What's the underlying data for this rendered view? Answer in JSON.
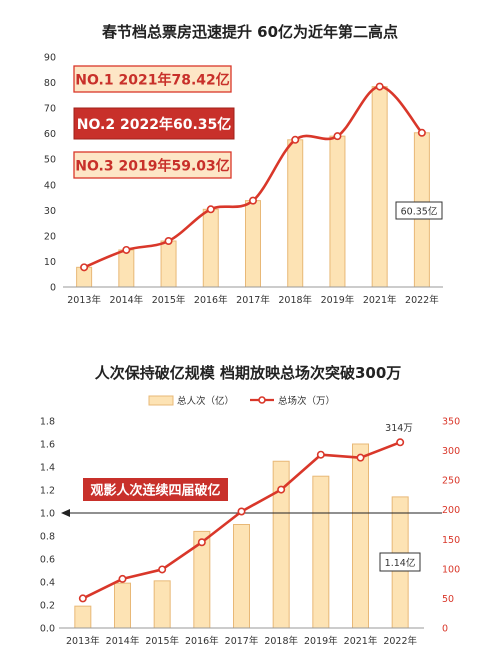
{
  "colors": {
    "bar_fill": "#FDE3B4",
    "bar_stroke": "#E8B877",
    "line": "#D9372A",
    "axis_text": "#333333",
    "grid": "#E6E6E6",
    "callout_light_fill": "#FDE6C6",
    "callout_dark_fill": "#C8302A"
  },
  "chart_data": [
    {
      "type": "bar+line",
      "title": "春节档总票房迅速提升 60亿为近年第二高点",
      "categories": [
        "2013年",
        "2014年",
        "2015年",
        "2016年",
        "2017年",
        "2018年",
        "2019年",
        "2021年",
        "2022年"
      ],
      "series": [
        {
          "kind": "bar",
          "values": [
            7.7,
            14.5,
            18.0,
            30.4,
            33.8,
            57.6,
            59.03,
            78.42,
            60.35
          ]
        },
        {
          "kind": "line",
          "values": [
            7.7,
            14.5,
            18.0,
            30.4,
            33.8,
            57.6,
            59.03,
            78.42,
            60.35
          ]
        }
      ],
      "ylim": [
        0,
        90
      ],
      "yticks": [
        "0",
        "10",
        "20",
        "30",
        "40",
        "50",
        "60",
        "70",
        "80",
        "90"
      ],
      "grid": false,
      "callouts": [
        "NO.1 2021年78.42亿",
        "NO.2 2022年60.35亿",
        "NO.3 2019年59.03亿"
      ],
      "end_label": "60.35亿"
    },
    {
      "type": "bar+line",
      "title": "人次保持破亿规模 档期放映总场次突破300万",
      "categories": [
        "2013年",
        "2014年",
        "2015年",
        "2016年",
        "2017年",
        "2018年",
        "2019年",
        "2021年",
        "2022年"
      ],
      "series": [
        {
          "name": "总人次（亿）",
          "kind": "bar",
          "axis": "left",
          "values": [
            0.19,
            0.39,
            0.41,
            0.84,
            0.9,
            1.45,
            1.32,
            1.6,
            1.14
          ]
        },
        {
          "name": "总场次（万）",
          "kind": "line",
          "axis": "right",
          "values": [
            50,
            83,
            99,
            145,
            197,
            234,
            293,
            288,
            314
          ]
        }
      ],
      "ylim_left": [
        0,
        1.8
      ],
      "yticks_left": [
        "0.0",
        "0.2",
        "0.4",
        "0.6",
        "0.8",
        "1.0",
        "1.2",
        "1.4",
        "1.6",
        "1.8"
      ],
      "ylim_right": [
        0,
        350
      ],
      "yticks_right": [
        "0",
        "50",
        "100",
        "150",
        "200",
        "250",
        "300",
        "350"
      ],
      "legend_placement": "top-center",
      "grid": false,
      "reference_line": 1.0,
      "callout": "观影人次连续四届破亿",
      "end_label": "1.14亿",
      "peak_label": "314万"
    }
  ]
}
